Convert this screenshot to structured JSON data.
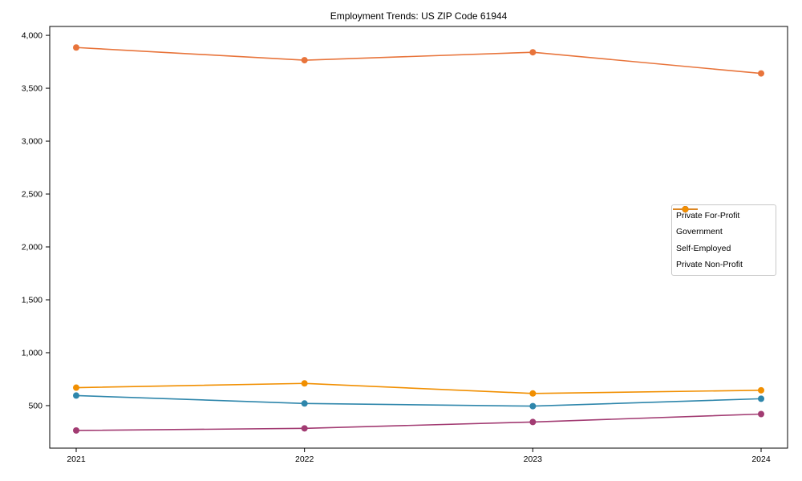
{
  "chart_data": {
    "type": "line",
    "title": "Employment Trends: US ZIP Code 61944",
    "categories": [
      "2021",
      "2022",
      "2023",
      "2024"
    ],
    "series": [
      {
        "name": "Private For-Profit",
        "color": "#E8743B",
        "values": [
          3885,
          3765,
          3840,
          3640
        ]
      },
      {
        "name": "Government",
        "color": "#2E86AB",
        "values": [
          595,
          520,
          495,
          565
        ]
      },
      {
        "name": "Self-Employed",
        "color": "#A23B72",
        "values": [
          265,
          285,
          345,
          420
        ]
      },
      {
        "name": "Private Non-Profit",
        "color": "#F18F01",
        "values": [
          670,
          710,
          615,
          645
        ]
      }
    ],
    "x_axis": {
      "tick_labels": [
        "2021",
        "2022",
        "2023",
        "2024"
      ]
    },
    "y_axis": {
      "min": 98,
      "max": 4084,
      "ticks": [
        500,
        1000,
        1500,
        2000,
        2500,
        3000,
        3500,
        4000
      ],
      "tick_labels": [
        "500",
        "1,000",
        "1,500",
        "2,000",
        "2,500",
        "3,000",
        "3,500",
        "4,000"
      ]
    },
    "legend": {
      "position": "center-right",
      "entries": [
        "Private For-Profit",
        "Government",
        "Self-Employed",
        "Private Non-Profit"
      ]
    },
    "grid": false,
    "marker": "circle",
    "line_width": 1.6,
    "marker_radius": 4,
    "frame_color": "#000000"
  }
}
